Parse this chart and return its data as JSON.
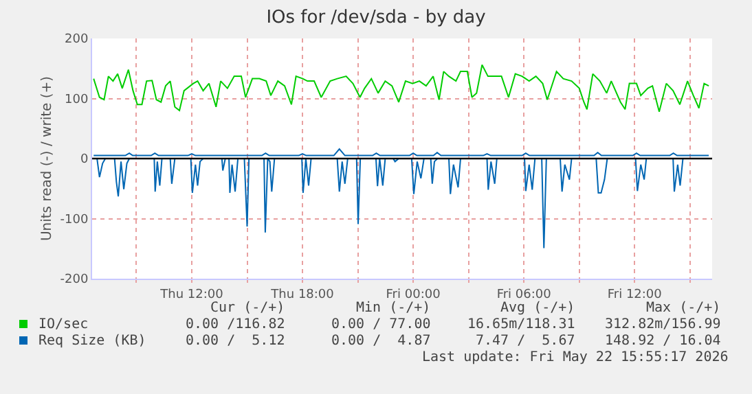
{
  "chart_data": {
    "type": "line",
    "title": "IOs for /dev/sda - by day",
    "ylabel": "Units read (-) / write (+)",
    "xlim": [
      "2026-05-21T06:36",
      "2026-05-22T16:12"
    ],
    "xticks": [
      {
        "value": "2026-05-21T09:00",
        "label": null
      },
      {
        "value": "2026-05-21T12:00",
        "label": "Thu 12:00"
      },
      {
        "value": "2026-05-21T15:00",
        "label": null
      },
      {
        "value": "2026-05-21T18:00",
        "label": "Thu 18:00"
      },
      {
        "value": "2026-05-21T21:00",
        "label": null
      },
      {
        "value": "2026-05-22T00:00",
        "label": "Fri 00:00"
      },
      {
        "value": "2026-05-22T03:00",
        "label": null
      },
      {
        "value": "2026-05-22T06:00",
        "label": "Fri 06:00"
      },
      {
        "value": "2026-05-22T09:00",
        "label": null
      },
      {
        "value": "2026-05-22T12:00",
        "label": "Fri 12:00"
      },
      {
        "value": "2026-05-22T15:00",
        "label": null
      }
    ],
    "ylim": [
      -200,
      200
    ],
    "yticks": [
      -200,
      -100,
      0,
      100,
      200
    ],
    "grid": true,
    "legend": "bottom",
    "ref_lines": [
      {
        "axis": "y",
        "value": 0,
        "color": "#000000"
      }
    ],
    "series": [
      {
        "name": "IO/sec",
        "color": "#00cc00",
        "x": [
          "2026-05-21T06:41",
          "2026-05-21T07:00",
          "2026-05-21T07:15",
          "2026-05-21T07:29",
          "2026-05-21T07:44",
          "2026-05-21T07:59",
          "2026-05-21T08:14",
          "2026-05-21T08:34",
          "2026-05-21T08:49",
          "2026-05-21T09:03",
          "2026-05-21T09:18",
          "2026-05-21T09:33",
          "2026-05-21T09:51",
          "2026-05-21T10:05",
          "2026-05-21T10:20",
          "2026-05-21T10:35",
          "2026-05-21T10:50",
          "2026-05-21T11:05",
          "2026-05-21T11:20",
          "2026-05-21T11:35",
          "2026-05-21T12:05",
          "2026-05-21T12:19",
          "2026-05-21T12:37",
          "2026-05-21T12:56",
          "2026-05-21T13:19",
          "2026-05-21T13:34",
          "2026-05-21T13:56",
          "2026-05-21T14:18",
          "2026-05-21T14:41",
          "2026-05-21T14:55",
          "2026-05-21T15:17",
          "2026-05-21T15:40",
          "2026-05-21T16:02",
          "2026-05-21T16:17",
          "2026-05-21T16:40",
          "2026-05-21T17:02",
          "2026-05-21T17:24",
          "2026-05-21T17:39",
          "2026-05-21T18:01",
          "2026-05-21T18:16",
          "2026-05-21T18:38",
          "2026-05-21T19:01",
          "2026-05-21T19:30",
          "2026-05-21T19:53",
          "2026-05-21T20:22",
          "2026-05-21T20:44",
          "2026-05-21T21:07",
          "2026-05-21T21:22",
          "2026-05-21T21:44",
          "2026-05-21T22:06",
          "2026-05-21T22:29",
          "2026-05-21T22:51",
          "2026-05-21T23:13",
          "2026-05-21T23:35",
          "2026-05-21T23:58",
          "2026-05-22T00:20",
          "2026-05-22T00:42",
          "2026-05-22T01:05",
          "2026-05-22T01:24",
          "2026-05-22T01:39",
          "2026-05-22T01:56",
          "2026-05-22T02:19",
          "2026-05-22T02:34",
          "2026-05-22T02:56",
          "2026-05-22T03:11",
          "2026-05-22T03:26",
          "2026-05-22T03:44",
          "2026-05-22T04:03",
          "2026-05-22T04:25",
          "2026-05-22T04:47",
          "2026-05-22T05:10",
          "2026-05-22T05:32",
          "2026-05-22T05:54",
          "2026-05-22T06:17",
          "2026-05-22T06:39",
          "2026-05-22T07:01",
          "2026-05-22T07:16",
          "2026-05-22T07:46",
          "2026-05-22T08:08",
          "2026-05-22T08:35",
          "2026-05-22T09:00",
          "2026-05-22T09:15",
          "2026-05-22T09:25",
          "2026-05-22T09:44",
          "2026-05-22T10:07",
          "2026-05-22T10:29",
          "2026-05-22T10:44",
          "2026-05-22T11:14",
          "2026-05-22T11:29",
          "2026-05-22T11:43",
          "2026-05-22T12:06",
          "2026-05-22T12:20",
          "2026-05-22T12:43",
          "2026-05-22T12:58",
          "2026-05-22T13:20",
          "2026-05-22T13:43",
          "2026-05-22T14:05",
          "2026-05-22T14:27",
          "2026-05-22T14:52",
          "2026-05-22T15:11",
          "2026-05-22T15:29",
          "2026-05-22T15:46",
          "2026-05-22T16:01"
        ],
        "values": [
          133,
          102,
          98,
          137,
          129,
          141,
          117,
          148,
          113,
          90,
          90,
          129,
          130,
          98,
          94,
          121,
          129,
          86,
          80,
          113,
          125,
          129,
          113,
          125,
          86,
          129,
          117,
          137,
          137,
          102,
          133,
          133,
          129,
          105,
          129,
          121,
          90,
          137,
          133,
          129,
          129,
          102,
          129,
          133,
          137,
          125,
          102,
          117,
          133,
          109,
          129,
          121,
          94,
          129,
          125,
          129,
          121,
          137,
          98,
          145,
          137,
          129,
          145,
          145,
          102,
          109,
          156,
          137,
          137,
          137,
          102,
          141,
          137,
          129,
          137,
          125,
          98,
          145,
          133,
          129,
          117,
          94,
          82,
          141,
          129,
          109,
          129,
          94,
          82,
          125,
          125,
          105,
          117,
          121,
          78,
          125,
          113,
          90,
          129,
          105,
          84,
          125,
          121
        ]
      },
      {
        "name": "Req Size (KB)",
        "color": "#0066b3",
        "x": [
          "2026-05-21T06:41",
          "2026-05-21T06:52",
          "2026-05-21T07:00",
          "2026-05-21T07:10",
          "2026-05-21T07:19",
          "2026-05-21T07:49",
          "2026-05-21T07:55",
          "2026-05-21T08:01",
          "2026-05-21T08:10",
          "2026-05-21T08:19",
          "2026-05-21T08:29",
          "2026-05-21T08:37",
          "2026-05-21T09:58",
          "2026-05-21T10:01",
          "2026-05-21T10:08",
          "2026-05-21T10:16",
          "2026-05-21T10:23",
          "2026-05-21T10:50",
          "2026-05-21T10:55",
          "2026-05-21T11:05",
          "2026-05-21T11:57",
          "2026-05-21T12:02",
          "2026-05-21T12:12",
          "2026-05-21T12:19",
          "2026-05-21T12:27",
          "2026-05-21T12:37",
          "2026-05-21T13:38",
          "2026-05-21T13:41",
          "2026-05-21T13:49",
          "2026-05-21T14:01",
          "2026-05-21T14:04",
          "2026-05-21T14:11",
          "2026-05-21T14:21",
          "2026-05-21T14:30",
          "2026-05-21T14:51",
          "2026-05-21T15:00",
          "2026-05-21T15:06",
          "2026-05-21T15:55",
          "2026-05-21T15:59",
          "2026-05-21T16:07",
          "2026-05-21T16:14",
          "2026-05-21T16:20",
          "2026-05-21T16:29",
          "2026-05-21T17:58",
          "2026-05-21T18:02",
          "2026-05-21T18:11",
          "2026-05-21T18:20",
          "2026-05-21T18:28",
          "2026-05-21T19:53",
          "2026-05-21T20:00",
          "2026-05-21T20:09",
          "2026-05-21T20:18",
          "2026-05-21T20:27",
          "2026-05-21T20:56",
          "2026-05-21T21:01",
          "2026-05-21T21:08",
          "2026-05-21T21:59",
          "2026-05-21T22:04",
          "2026-05-21T22:11",
          "2026-05-21T22:21",
          "2026-05-21T22:29",
          "2026-05-21T22:55",
          "2026-05-21T23:01",
          "2026-05-21T23:13",
          "2026-05-21T23:55",
          "2026-05-22T00:02",
          "2026-05-22T00:13",
          "2026-05-22T00:25",
          "2026-05-22T00:35",
          "2026-05-22T00:57",
          "2026-05-22T01:02",
          "2026-05-22T01:09",
          "2026-05-22T01:19",
          "2026-05-22T01:56",
          "2026-05-22T02:01",
          "2026-05-22T02:11",
          "2026-05-22T02:26",
          "2026-05-22T02:34",
          "2026-05-22T04:00",
          "2026-05-22T04:04",
          "2026-05-22T04:13",
          "2026-05-22T04:25",
          "2026-05-22T04:32",
          "2026-05-22T06:02",
          "2026-05-22T06:06",
          "2026-05-22T06:17",
          "2026-05-22T06:27",
          "2026-05-22T06:36",
          "2026-05-22T06:58",
          "2026-05-22T07:05",
          "2026-05-22T07:13",
          "2026-05-22T07:58",
          "2026-05-22T08:04",
          "2026-05-22T08:13",
          "2026-05-22T08:28",
          "2026-05-22T08:35",
          "2026-05-22T09:55",
          "2026-05-22T10:02",
          "2026-05-22T10:11",
          "2026-05-22T10:22",
          "2026-05-22T10:31",
          "2026-05-22T12:03",
          "2026-05-22T12:09",
          "2026-05-22T12:20",
          "2026-05-22T12:31",
          "2026-05-22T12:38",
          "2026-05-22T14:05",
          "2026-05-22T14:09",
          "2026-05-22T14:20",
          "2026-05-22T14:28",
          "2026-05-22T14:37",
          "2026-05-22T16:01"
        ],
        "values": [
          0,
          0,
          -31,
          -8,
          0,
          0,
          -39,
          -63,
          -5,
          -51,
          -8,
          0,
          0,
          -55,
          -5,
          -45,
          0,
          0,
          -42,
          0,
          0,
          -57,
          -10,
          -45,
          -5,
          0,
          0,
          -20,
          0,
          0,
          -57,
          -10,
          -55,
          0,
          0,
          -113,
          0,
          0,
          -123,
          0,
          -5,
          -55,
          0,
          0,
          -57,
          0,
          -45,
          0,
          0,
          -55,
          -5,
          -42,
          0,
          0,
          -109,
          0,
          0,
          -46,
          0,
          -45,
          0,
          0,
          -5,
          0,
          0,
          -59,
          -5,
          -33,
          0,
          0,
          -42,
          -5,
          0,
          0,
          -59,
          -10,
          -48,
          0,
          0,
          -52,
          -5,
          -42,
          0,
          0,
          -54,
          -10,
          -52,
          0,
          0,
          -149,
          0,
          0,
          -55,
          -10,
          -35,
          0,
          0,
          -57,
          -57,
          -35,
          0,
          0,
          -54,
          -10,
          -35,
          0,
          0,
          -55,
          -10,
          -45,
          0,
          0
        ]
      },
      {
        "color": "#0066b3",
        "x": [
          "2026-05-21T06:41",
          "2026-05-21T08:24",
          "2026-05-21T08:37",
          "2026-05-21T08:48",
          "2026-05-21T09:48",
          "2026-05-21T10:00",
          "2026-05-21T10:12",
          "2026-05-21T11:48",
          "2026-05-21T12:00",
          "2026-05-21T12:12",
          "2026-05-21T15:48",
          "2026-05-21T16:00",
          "2026-05-21T16:12",
          "2026-05-21T17:48",
          "2026-05-21T18:00",
          "2026-05-21T18:12",
          "2026-05-21T19:42",
          "2026-05-21T20:00",
          "2026-05-21T20:18",
          "2026-05-21T21:48",
          "2026-05-21T22:00",
          "2026-05-21T22:12",
          "2026-05-21T23:48",
          "2026-05-22T00:00",
          "2026-05-22T00:12",
          "2026-05-22T01:06",
          "2026-05-22T01:18",
          "2026-05-22T01:30",
          "2026-05-22T03:48",
          "2026-05-22T04:00",
          "2026-05-22T04:12",
          "2026-05-22T05:54",
          "2026-05-22T06:06",
          "2026-05-22T06:18",
          "2026-05-22T09:48",
          "2026-05-22T10:00",
          "2026-05-22T10:12",
          "2026-05-22T11:54",
          "2026-05-22T12:06",
          "2026-05-22T12:18",
          "2026-05-22T13:54",
          "2026-05-22T14:06",
          "2026-05-22T14:18",
          "2026-05-22T16:01"
        ],
        "values": [
          5,
          5,
          9,
          5,
          5,
          9,
          5,
          5,
          8,
          5,
          5,
          9,
          5,
          5,
          8,
          5,
          5,
          16,
          5,
          5,
          9,
          5,
          5,
          9,
          5,
          5,
          10,
          5,
          5,
          8,
          5,
          5,
          9,
          5,
          5,
          10,
          5,
          5,
          9,
          5,
          5,
          9,
          5,
          5
        ]
      }
    ],
    "annotations": [
      "Cur (-/+)",
      "Min (-/+)",
      "Avg (-/+)",
      "Max (-/+)",
      "0.00 /116.82",
      "0.00 / 77.00",
      "16.65m/118.31",
      "312.82m/156.99",
      "0.00 /  5.12",
      "0.00 /  4.87",
      "7.47 /  5.67",
      "148.92 / 16.04",
      "Last update: Fri May 22 15:55:17 2026"
    ]
  }
}
